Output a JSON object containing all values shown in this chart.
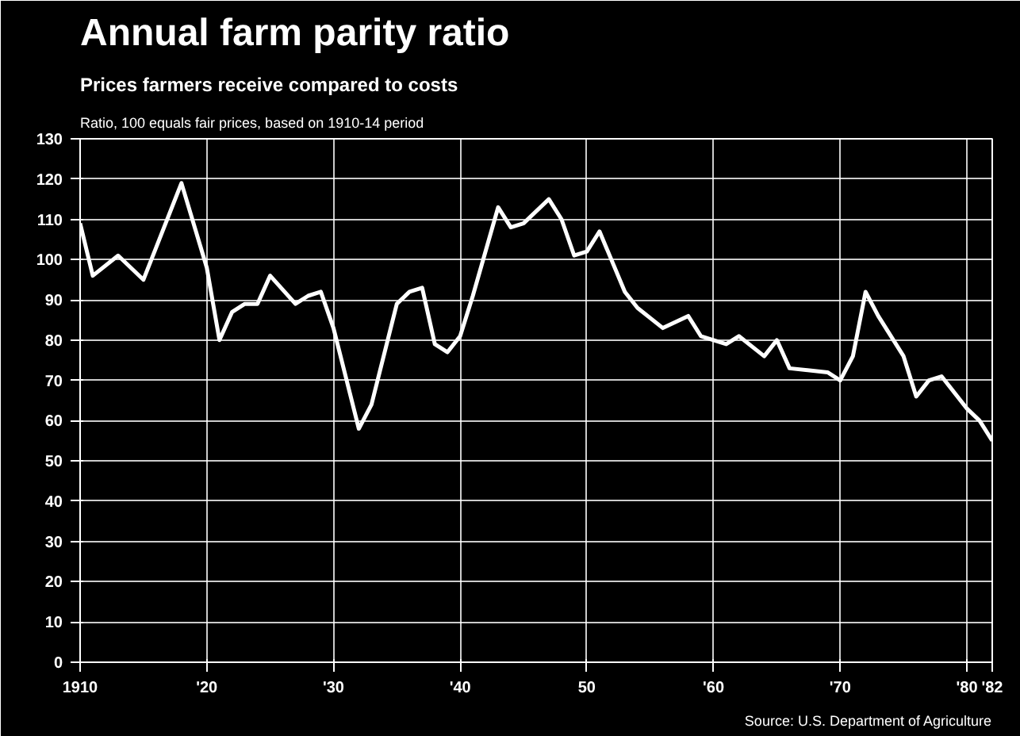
{
  "chart_data": {
    "type": "line",
    "title": "Annual farm parity ratio",
    "subtitle": "Prices farmers receive compared to costs",
    "ylabel": "Ratio, 100 equals fair prices, based on 1910-14 period",
    "annotations": [
      "Source: U.S. Department of Agriculture"
    ],
    "series": [
      {
        "color": "#ffffff",
        "x": [
          1910,
          1911,
          1913,
          1915,
          1916,
          1918,
          1920,
          1921,
          1922,
          1923,
          1924,
          1925,
          1927,
          1928,
          1929,
          1930,
          1932,
          1933,
          1935,
          1936,
          1937,
          1938,
          1939,
          1940,
          1941,
          1943,
          1944,
          1945,
          1947,
          1948,
          1949,
          1950,
          1951,
          1953,
          1954,
          1956,
          1958,
          1959,
          1961,
          1962,
          1964,
          1965,
          1966,
          1969,
          1970,
          1971,
          1972,
          1973,
          1975,
          1976,
          1977,
          1978,
          1980,
          1981,
          1982
        ],
        "values": [
          109,
          96,
          101,
          95,
          103,
          119,
          98,
          80,
          87,
          89,
          89,
          96,
          89,
          91,
          92,
          83,
          58,
          64,
          89,
          92,
          93,
          79,
          77,
          81,
          91,
          113,
          108,
          109,
          115,
          110,
          101,
          102,
          107,
          92,
          88,
          83,
          86,
          81,
          79,
          81,
          76,
          80,
          73,
          72,
          70,
          76,
          92,
          86,
          76,
          66,
          70,
          71,
          63,
          60,
          55
        ]
      }
    ],
    "xlim": [
      1910,
      1982
    ],
    "ylim": [
      0,
      130
    ],
    "xticks": [
      {
        "value": 1910,
        "label": "1910"
      },
      {
        "value": 1920,
        "label": "'20"
      },
      {
        "value": 1930,
        "label": "'30"
      },
      {
        "value": 1940,
        "label": "'40"
      },
      {
        "value": 1950,
        "label": "50"
      },
      {
        "value": 1960,
        "label": "'60"
      },
      {
        "value": 1970,
        "label": "'70"
      },
      {
        "value": 1980,
        "label": "'80"
      },
      {
        "value": 1982,
        "label": "'82"
      }
    ],
    "yticks": [
      0,
      10,
      20,
      30,
      40,
      50,
      60,
      70,
      80,
      90,
      100,
      110,
      120,
      130
    ],
    "grid": true,
    "marker": "none",
    "line_style": "solid"
  }
}
